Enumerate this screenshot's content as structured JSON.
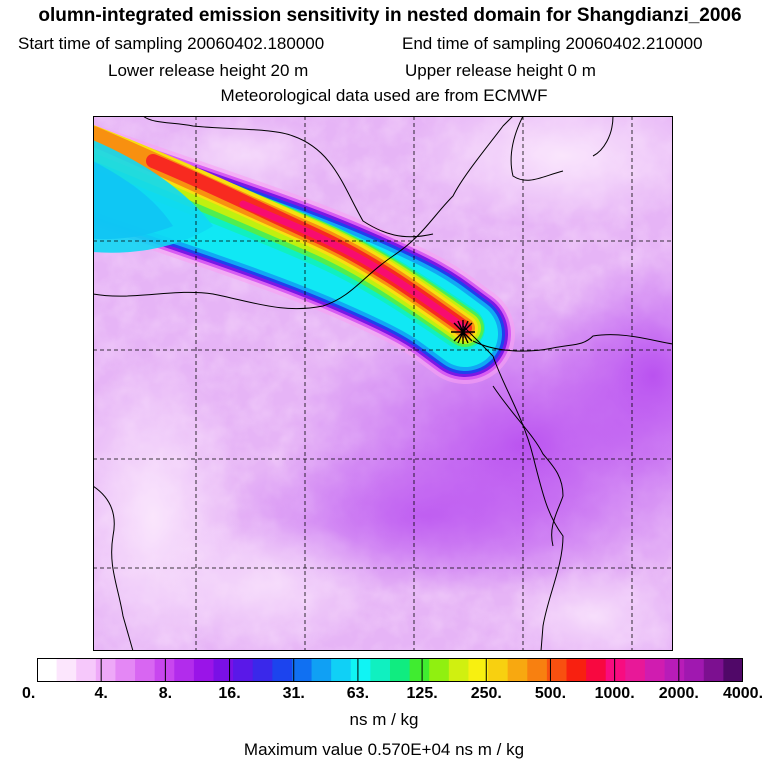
{
  "header": {
    "title": "olumn-integrated emission sensitivity in nested domain for Shangdianzi_2006",
    "start_label": "Start time of sampling 20060402.180000",
    "end_label": "End time of sampling 20060402.210000",
    "lower_label": "Lower release height   20 m",
    "upper_label": "Upper release height    0 m",
    "met_label": "Meteorological data used are from ECMWF"
  },
  "colorbar": {
    "ticks": [
      "0.",
      "4.",
      "8.",
      "16.",
      "31.",
      "63.",
      "125.",
      "250.",
      "500.",
      "1000.",
      "2000.",
      "4000."
    ],
    "colors": [
      "#ffffff",
      "#fce6fd",
      "#f6c8fb",
      "#eea8f8",
      "#e487f5",
      "#d866f2",
      "#c846ef",
      "#b22cec",
      "#9a14e8",
      "#7a10e6",
      "#5a18e8",
      "#3a28ea",
      "#1c44ee",
      "#1070f2",
      "#10a0f4",
      "#10d0f6",
      "#10f4f4",
      "#10f0c0",
      "#10ec80",
      "#40ec30",
      "#90f010",
      "#d0f010",
      "#f8f010",
      "#f8d010",
      "#f8a810",
      "#f88010",
      "#f85010",
      "#f82010",
      "#f80840",
      "#f80c80",
      "#e81898",
      "#d01cb0",
      "#b81cb8",
      "#a018b0",
      "#7c1090",
      "#500868"
    ],
    "unit": "ns m / kg"
  },
  "footer": {
    "max_value": "Maximum value  0.570E+04 ns m / kg"
  },
  "map": {
    "receptor": "Shangdianzi",
    "plume_colors": [
      "#10e0f4",
      "#10f4d0",
      "#40f080",
      "#c8f010",
      "#f8d010",
      "#f88010",
      "#f82020",
      "#f80c70"
    ],
    "background_color": "#e8b8f6",
    "dark_region_color": "#c066f0"
  }
}
